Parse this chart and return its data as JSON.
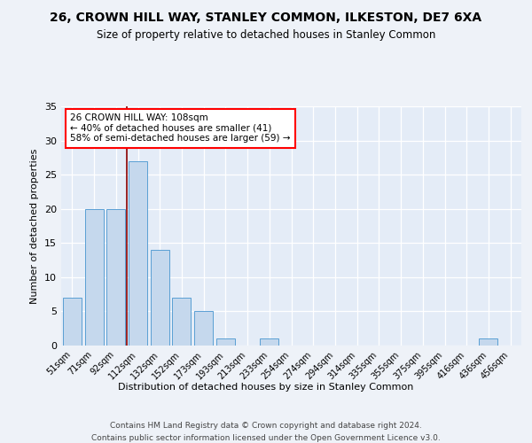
{
  "title1": "26, CROWN HILL WAY, STANLEY COMMON, ILKESTON, DE7 6XA",
  "title2": "Size of property relative to detached houses in Stanley Common",
  "xlabel": "Distribution of detached houses by size in Stanley Common",
  "ylabel": "Number of detached properties",
  "categories": [
    "51sqm",
    "71sqm",
    "92sqm",
    "112sqm",
    "132sqm",
    "152sqm",
    "173sqm",
    "193sqm",
    "213sqm",
    "233sqm",
    "254sqm",
    "274sqm",
    "294sqm",
    "314sqm",
    "335sqm",
    "355sqm",
    "375sqm",
    "395sqm",
    "416sqm",
    "436sqm",
    "456sqm"
  ],
  "values": [
    7,
    20,
    20,
    27,
    14,
    7,
    5,
    1,
    0,
    1,
    0,
    0,
    0,
    0,
    0,
    0,
    0,
    0,
    0,
    1,
    0
  ],
  "bar_color": "#c5d8ed",
  "bar_edge_color": "#5a9fd4",
  "red_line_x": 2.5,
  "ylim": [
    0,
    35
  ],
  "yticks": [
    0,
    5,
    10,
    15,
    20,
    25,
    30,
    35
  ],
  "footer1": "Contains HM Land Registry data © Crown copyright and database right 2024.",
  "footer2": "Contains public sector information licensed under the Open Government Licence v3.0.",
  "bg_color": "#eef2f8",
  "plot_bg_color": "#e4ecf7",
  "ann_line1": "26 CROWN HILL WAY: 108sqm",
  "ann_line2": "← 40% of detached houses are smaller (41)",
  "ann_line3": "58% of semi-detached houses are larger (59) →"
}
